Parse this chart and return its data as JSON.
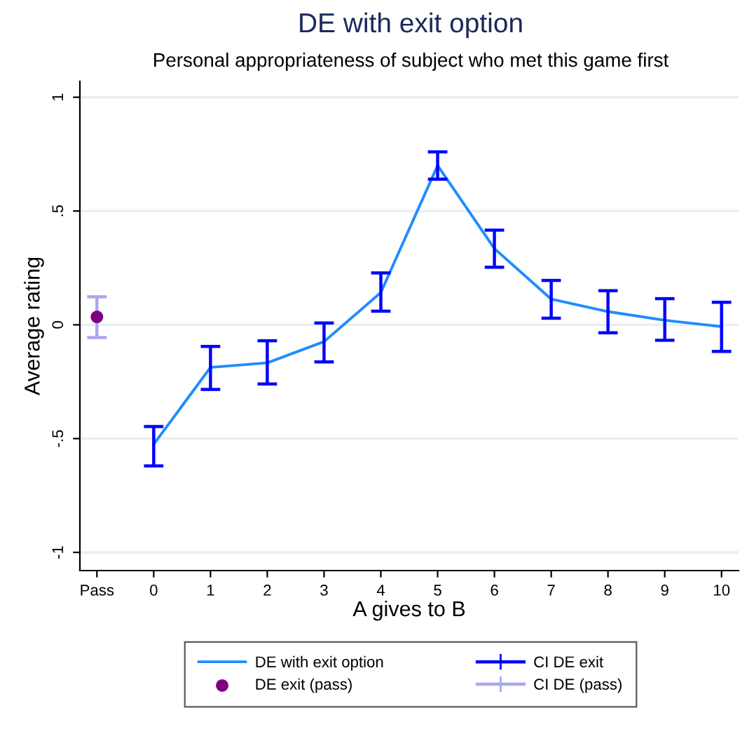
{
  "chart_data": {
    "type": "line",
    "title": "DE with exit option",
    "subtitle": "Personal appropriateness of subject who met this game first",
    "xlabel": "A gives to B",
    "ylabel": "Average rating",
    "categories": [
      "Pass",
      "0",
      "1",
      "2",
      "3",
      "4",
      "5",
      "6",
      "7",
      "8",
      "9",
      "10"
    ],
    "series": [
      {
        "name": "DE with exit option",
        "color": "#1e8cff",
        "values": [
          null,
          -0.525,
          -0.187,
          -0.167,
          -0.074,
          0.142,
          0.7,
          0.335,
          0.113,
          0.058,
          0.02,
          -0.008
        ],
        "errors": [
          null,
          [
            -0.62,
            -0.447
          ],
          [
            -0.284,
            -0.095
          ],
          [
            -0.26,
            -0.07
          ],
          [
            -0.163,
            0.008
          ],
          [
            0.06,
            0.228
          ],
          [
            0.64,
            0.76
          ],
          [
            0.253,
            0.416
          ],
          [
            0.029,
            0.195
          ],
          [
            -0.035,
            0.15
          ],
          [
            -0.068,
            0.115
          ],
          [
            -0.117,
            0.099
          ]
        ]
      },
      {
        "name": "DE exit (pass)",
        "type": "scatter",
        "color": "#800080",
        "marker": "circle",
        "x": [
          "Pass"
        ],
        "values": [
          0.035
        ],
        "errors": [
          [
            -0.056,
            0.123
          ]
        ]
      }
    ],
    "annotations": [
      "CI DE exit",
      "CI DE (pass)"
    ],
    "ylim": [
      -1.08,
      1.07
    ],
    "yticks": [
      {
        "value": -1,
        "label": "-1"
      },
      {
        "value": -0.5,
        "label": "-.5"
      },
      0,
      {
        "value": 0.5,
        "label": ".5"
      },
      1
    ],
    "grid": "y",
    "legend": "bottom"
  }
}
